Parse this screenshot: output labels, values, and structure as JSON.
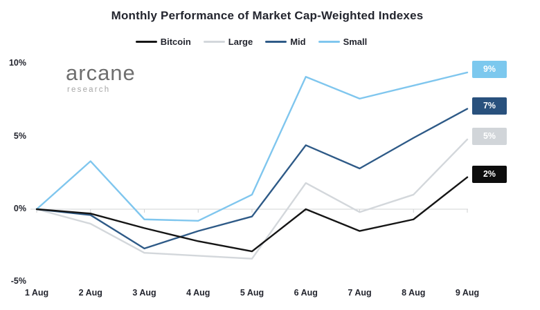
{
  "logo": {
    "wordmark": "arcane",
    "subtitle": "research"
  },
  "chart_data": {
    "type": "line",
    "title": "Monthly Performance of Market Cap-Weighted Indexes",
    "categories": [
      "1 Aug",
      "2 Aug",
      "3 Aug",
      "4 Aug",
      "5 Aug",
      "6 Aug",
      "7 Aug",
      "8 Aug",
      "9 Aug"
    ],
    "unit": "%",
    "ylim": [
      -5,
      10
    ],
    "y_ticks": [
      10,
      5,
      0,
      -5
    ],
    "y_tick_labels": [
      "10%",
      "5%",
      "0%",
      "-5%"
    ],
    "grid": "zero-line-only",
    "legend_position": "top-center",
    "series": [
      {
        "name": "Bitcoin",
        "color": "#151515",
        "values": [
          0,
          -0.3,
          -1.3,
          -2.2,
          -2.9,
          0,
          -1.5,
          -0.7,
          2.2
        ],
        "end_label": "2%",
        "end_label_bg": "#0d0d0d",
        "end_label_text_color": "#ffffff"
      },
      {
        "name": "Large",
        "color": "#d3d7db",
        "values": [
          0,
          -1.0,
          -3.0,
          -3.2,
          -3.4,
          1.8,
          -0.2,
          1.0,
          4.8
        ],
        "end_label": "5%",
        "end_label_bg": "#d1d5d9",
        "end_label_text_color": "#ffffff"
      },
      {
        "name": "Mid",
        "color": "#2e5a87",
        "values": [
          0,
          -0.4,
          -2.7,
          -1.5,
          -0.5,
          4.4,
          2.8,
          4.9,
          6.9
        ],
        "end_label": "7%",
        "end_label_bg": "#29517d",
        "end_label_text_color": "#ffffff"
      },
      {
        "name": "Small",
        "color": "#7fc6ee",
        "values": [
          0,
          3.3,
          -0.7,
          -0.8,
          1.0,
          9.1,
          7.6,
          8.5,
          9.4
        ],
        "end_label": "9%",
        "end_label_bg": "#7cc8ee",
        "end_label_text_color": "#ffffff"
      }
    ]
  }
}
